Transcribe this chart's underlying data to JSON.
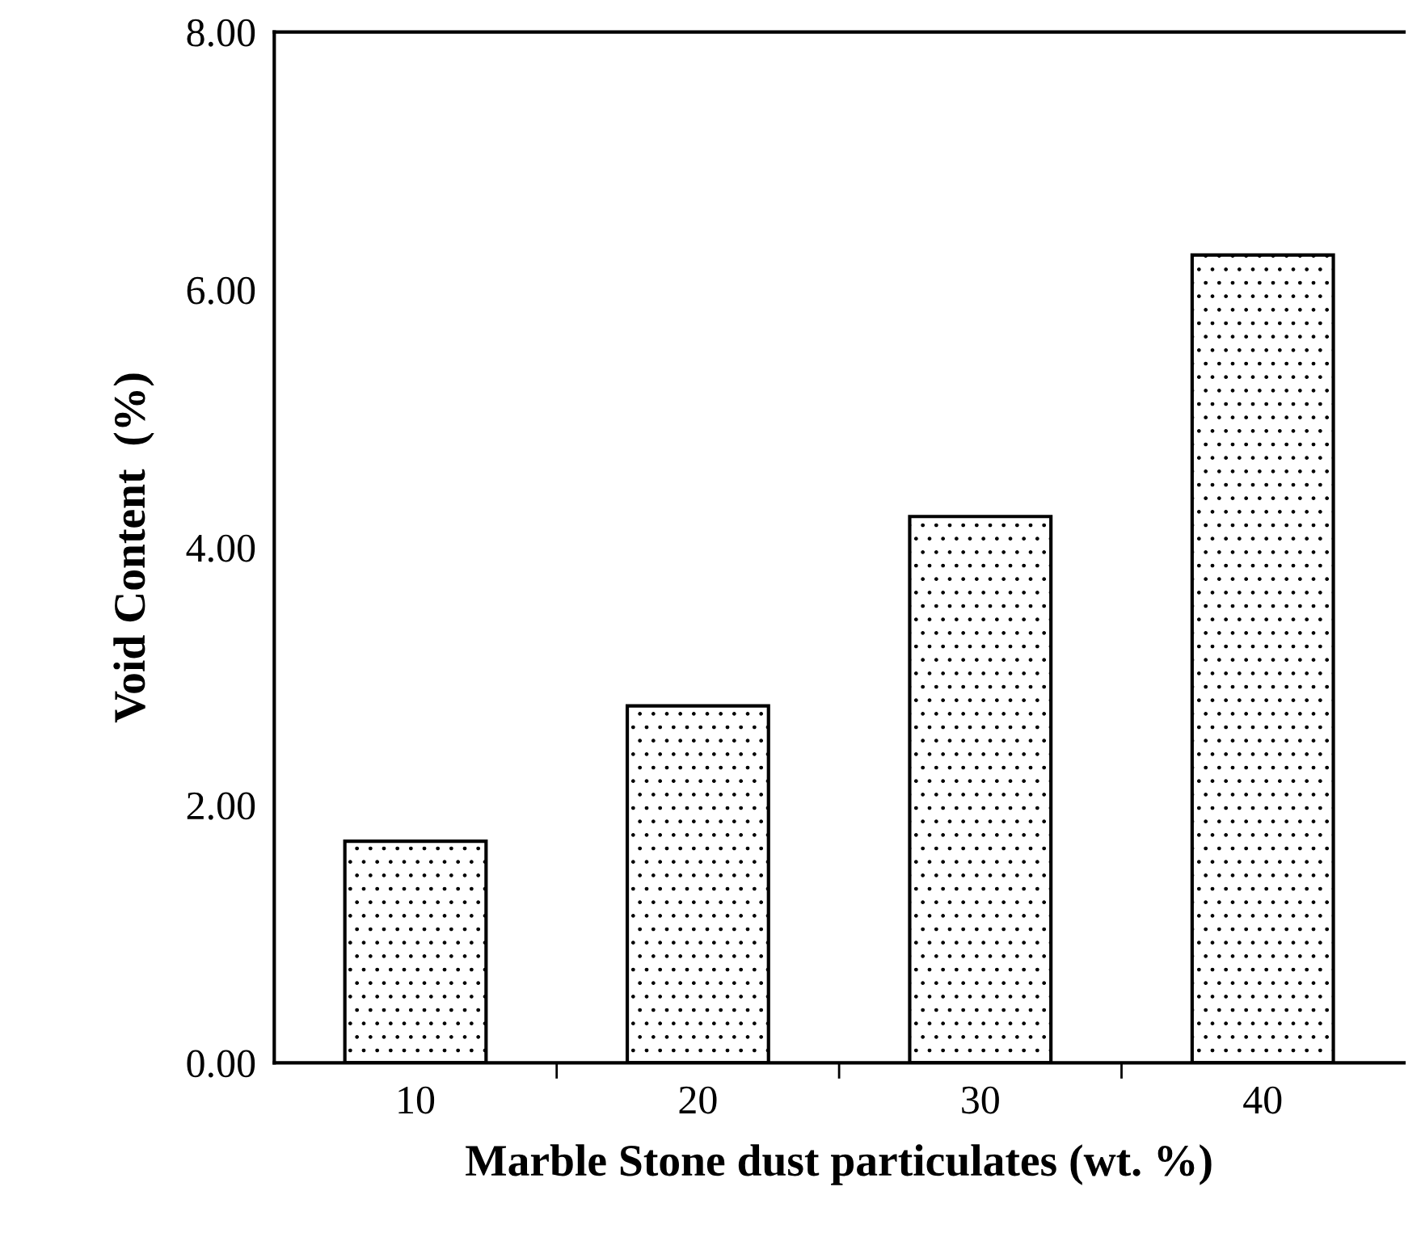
{
  "chart_data": {
    "type": "bar",
    "xlabel": "Marble Stone dust particulates (wt. %)",
    "ylabel": "Void Content  (%)",
    "categories": [
      "10",
      "20",
      "30",
      "40"
    ],
    "values": [
      1.72,
      2.77,
      4.24,
      6.27
    ],
    "color": "#000000",
    "ylim": [
      0,
      8
    ],
    "yticks": [
      {
        "value": 0,
        "label": "0.00"
      },
      {
        "value": 2,
        "label": "2.00"
      },
      {
        "value": 4,
        "label": "4.00"
      },
      {
        "value": 6,
        "label": "6.00"
      },
      {
        "value": 8,
        "label": "8.00"
      }
    ],
    "grid": false,
    "legend": false
  }
}
